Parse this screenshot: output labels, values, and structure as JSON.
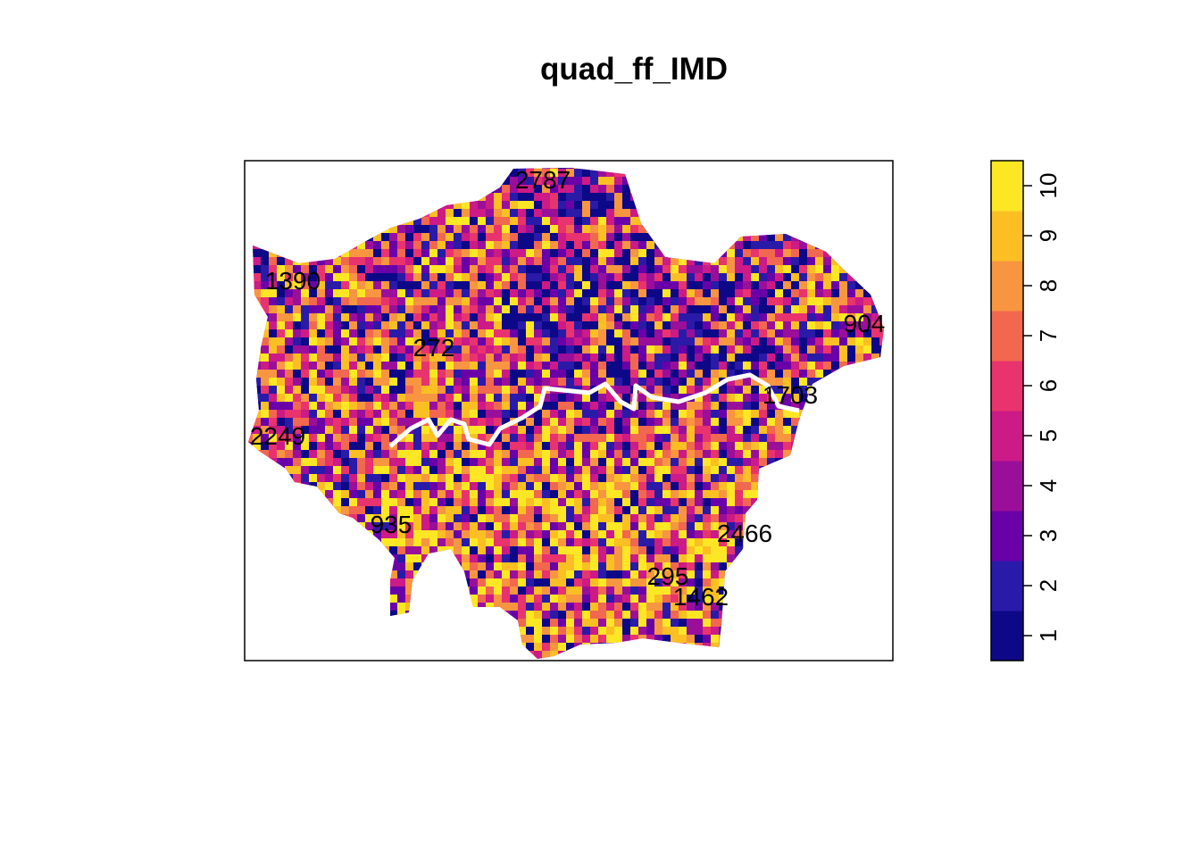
{
  "title": "quad_ff_IMD",
  "colorbar": {
    "ticks": [
      "1",
      "2",
      "3",
      "4",
      "5",
      "6",
      "7",
      "8",
      "9",
      "10"
    ],
    "colors": [
      "#0d0887",
      "#2a1aa8",
      "#6a00a8",
      "#9a0f9a",
      "#cc1a86",
      "#e8336e",
      "#f2674f",
      "#f89540",
      "#fbbf24",
      "#fde725"
    ]
  },
  "labels": [
    {
      "text": "2787"
    },
    {
      "text": "1390"
    },
    {
      "text": "904"
    },
    {
      "text": "272"
    },
    {
      "text": "1703"
    },
    {
      "text": "2249"
    },
    {
      "text": "935"
    },
    {
      "text": "2466"
    },
    {
      "text": "295"
    },
    {
      "text": "1462"
    }
  ]
}
